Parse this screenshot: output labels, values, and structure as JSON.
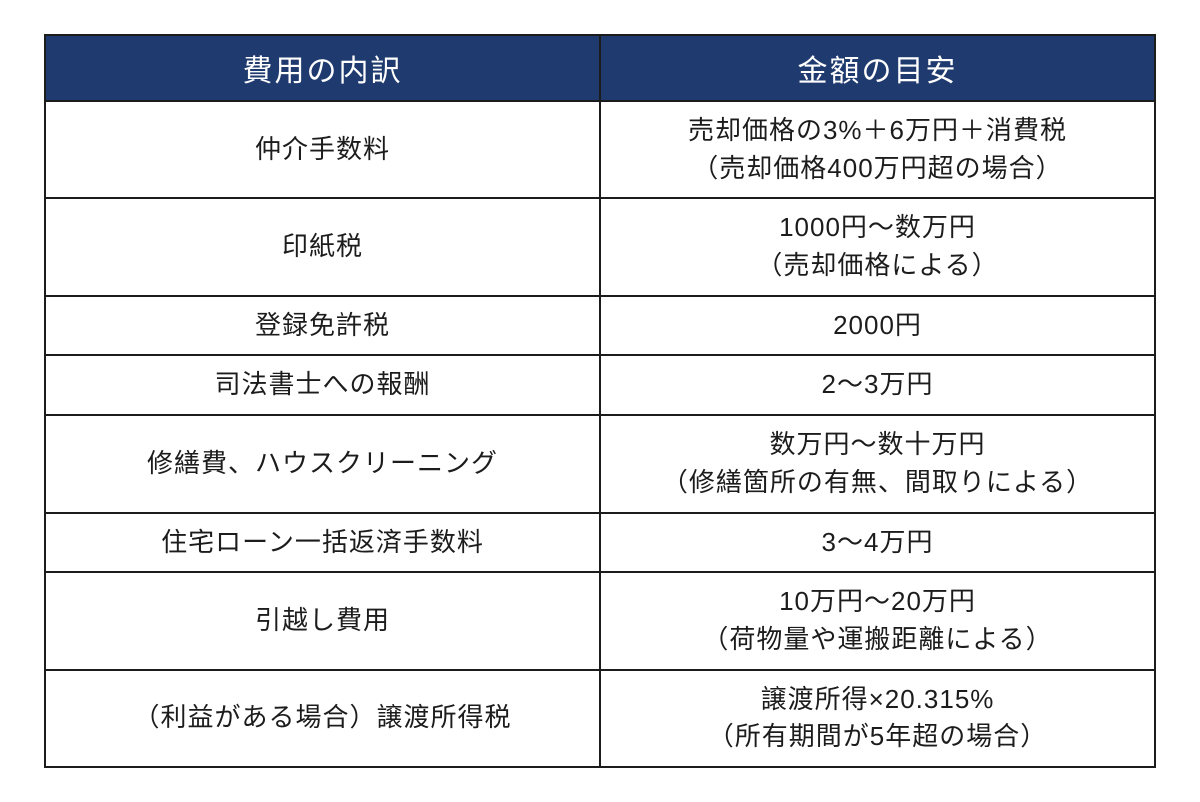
{
  "table": {
    "header_bg": "#1f3a6e",
    "header_fg": "#ffffff",
    "border_color": "#1c1c1c",
    "cell_fg": "#1c1c1c",
    "header_fontsize": 30,
    "cell_fontsize": 26,
    "columns": [
      "費用の内訳",
      "金額の目安"
    ],
    "rows": [
      {
        "item": "仲介手数料",
        "amount_line1": "売却価格の3%＋6万円＋消費税",
        "amount_line2": "（売却価格400万円超の場合）"
      },
      {
        "item": "印紙税",
        "amount_line1": "1000円〜数万円",
        "amount_line2": "（売却価格による）"
      },
      {
        "item": "登録免許税",
        "amount_line1": "2000円",
        "amount_line2": ""
      },
      {
        "item": "司法書士への報酬",
        "amount_line1": "2〜3万円",
        "amount_line2": ""
      },
      {
        "item": "修繕費、ハウスクリーニング",
        "amount_line1": "数万円〜数十万円",
        "amount_line2": "（修繕箇所の有無、間取りによる）"
      },
      {
        "item": "住宅ローン一括返済手数料",
        "amount_line1": "3〜4万円",
        "amount_line2": ""
      },
      {
        "item": "引越し費用",
        "amount_line1": "10万円〜20万円",
        "amount_line2": "（荷物量や運搬距離による）"
      },
      {
        "item": "（利益がある場合）譲渡所得税",
        "amount_line1": "譲渡所得×20.315%",
        "amount_line2": "（所有期間が5年超の場合）"
      }
    ]
  }
}
